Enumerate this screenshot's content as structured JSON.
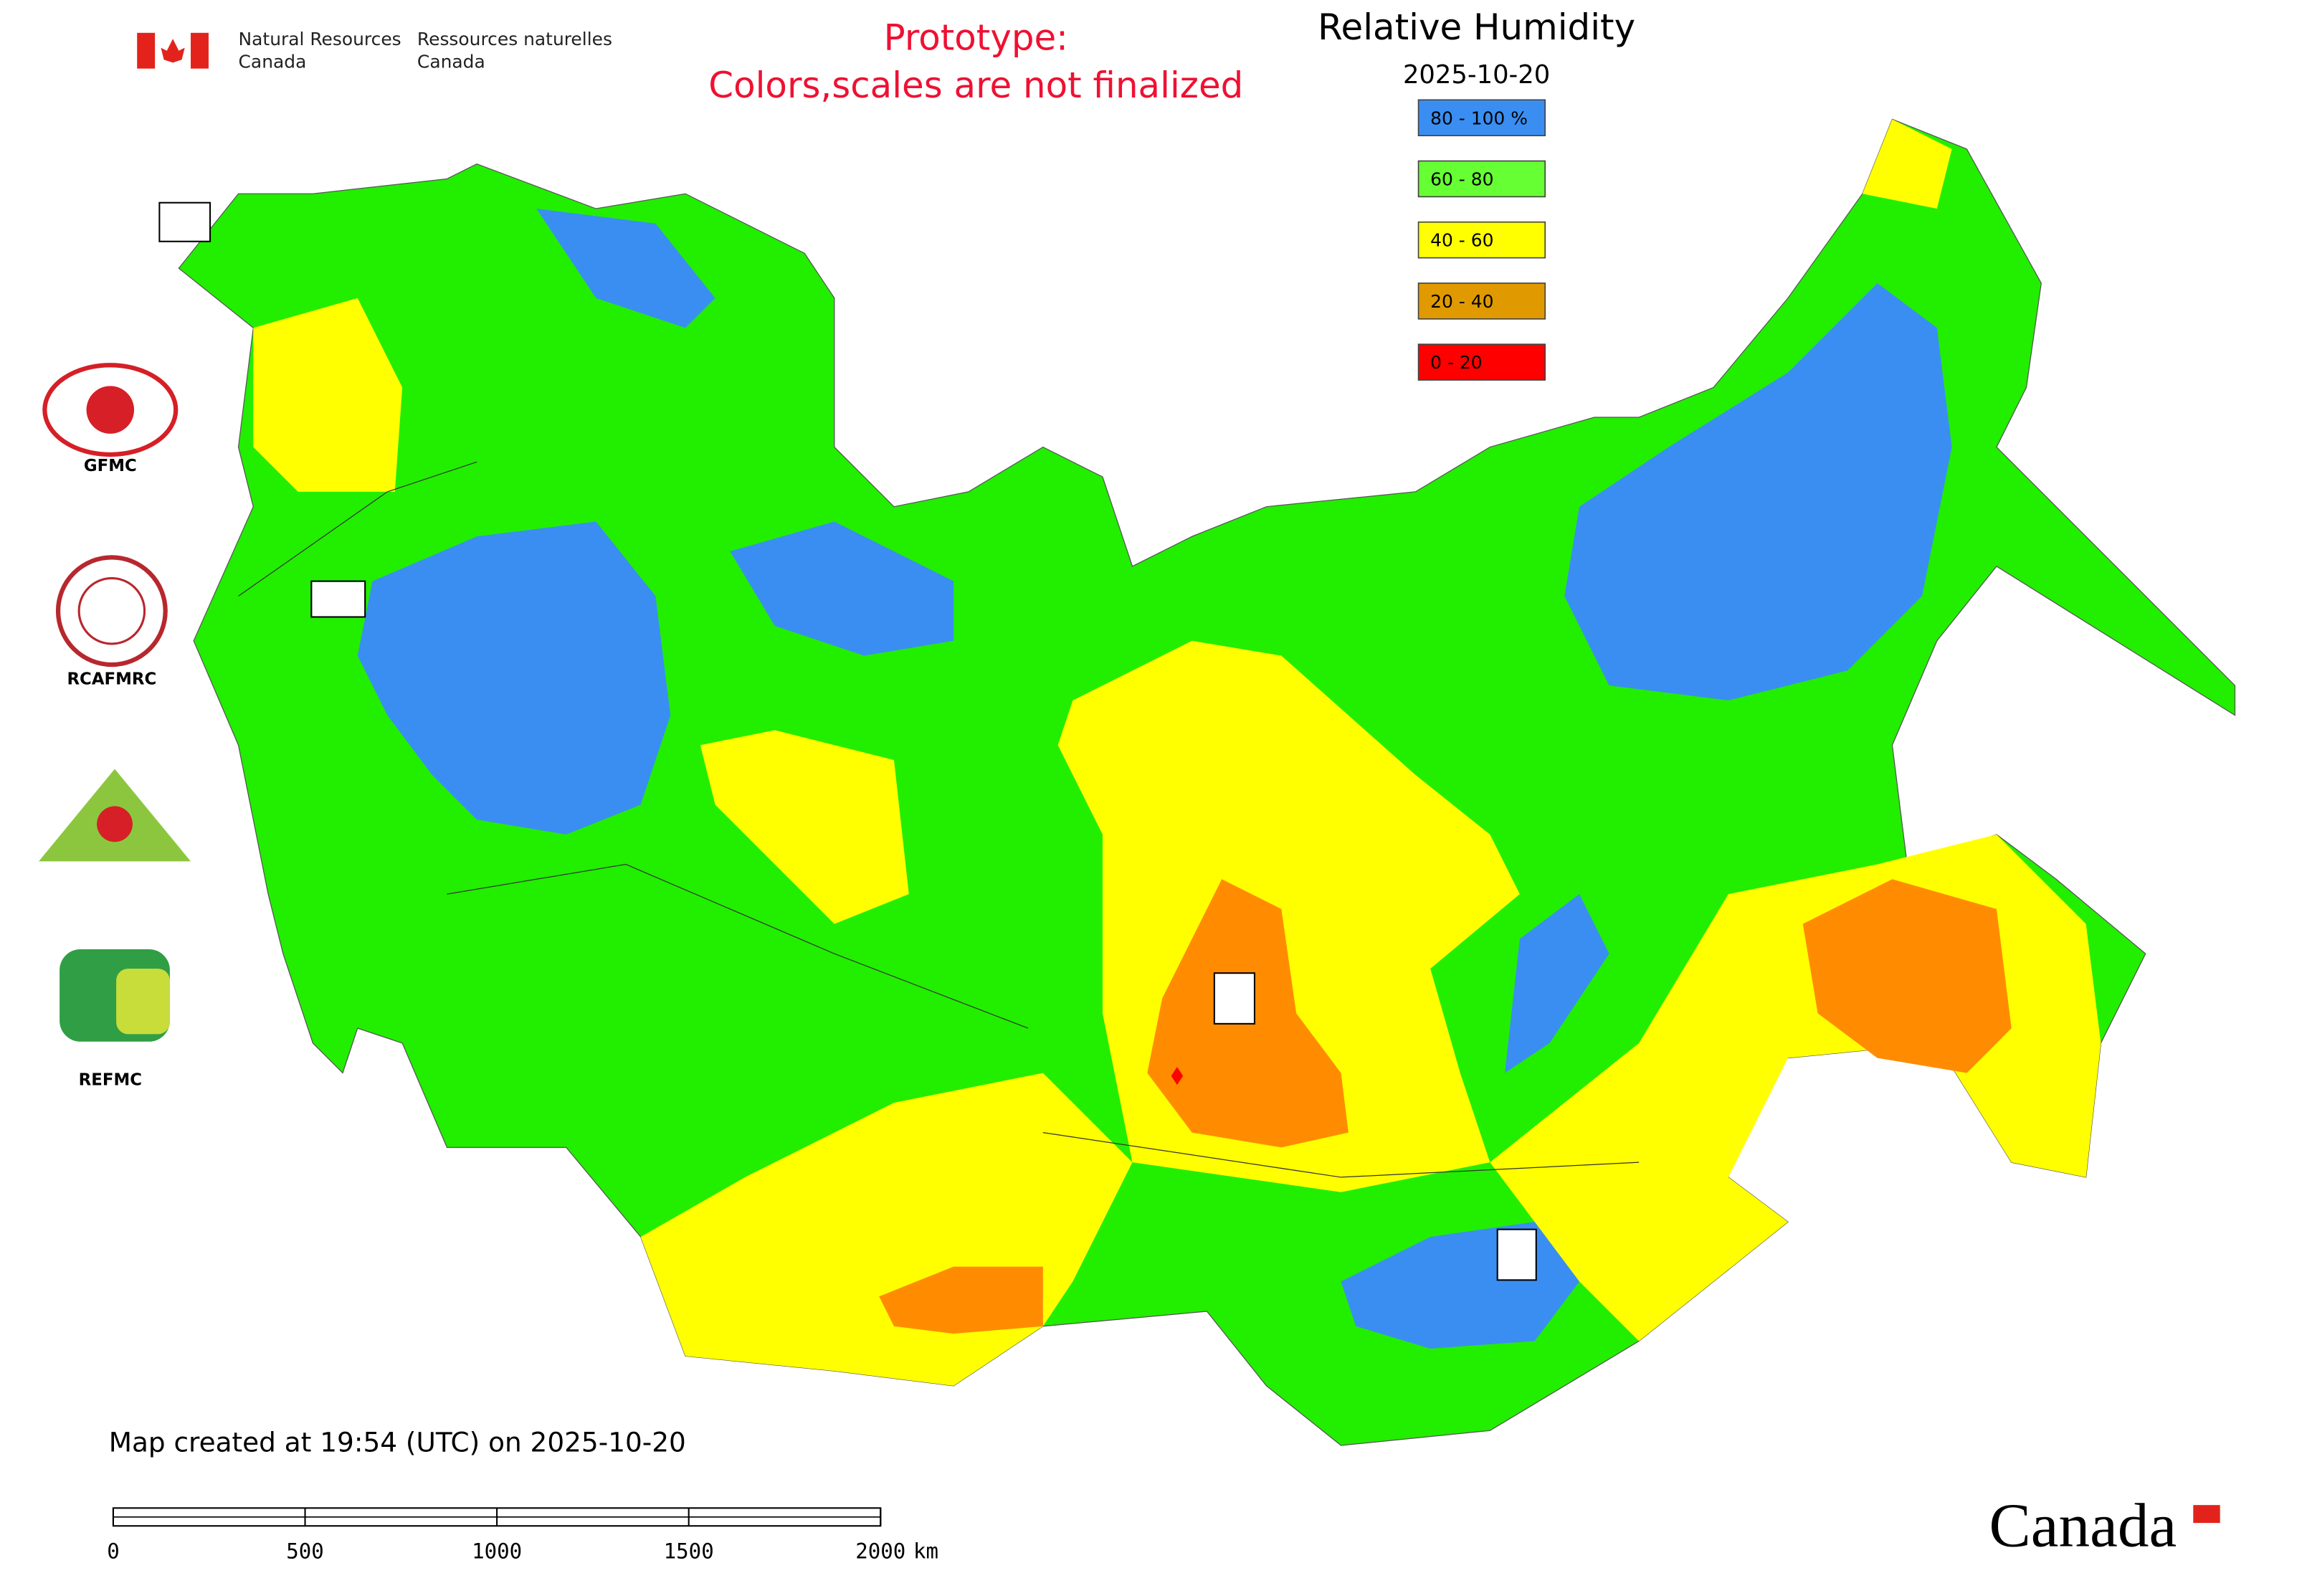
{
  "header": {
    "org_en": [
      "Natural Resources",
      "Canada"
    ],
    "org_fr": [
      "Ressources naturelles",
      "Canada"
    ],
    "prototype": [
      "Prototype:",
      "Colors,scales are not finalized"
    ]
  },
  "legend": {
    "title": "Relative Humidity",
    "date": "2025-10-20",
    "items": [
      {
        "label": "80 - 100 %",
        "color": "#3a8ef2"
      },
      {
        "label": "60 - 80",
        "color": "#66ff33"
      },
      {
        "label": "40 - 60",
        "color": "#ffff00"
      },
      {
        "label": "20 - 40",
        "color": "#e09a00"
      },
      {
        "label": "0 - 20",
        "color": "#ff0000"
      }
    ]
  },
  "logos": [
    "GFMC",
    "RCAFMRC",
    "REFMC"
  ],
  "footer": {
    "created": "Map created at 19:54 (UTC) on 2025-10-20",
    "wordmark": "Canada"
  },
  "scale_bar": {
    "ticks": [
      0,
      500,
      1000,
      1500,
      2000
    ],
    "unit": "km"
  }
}
